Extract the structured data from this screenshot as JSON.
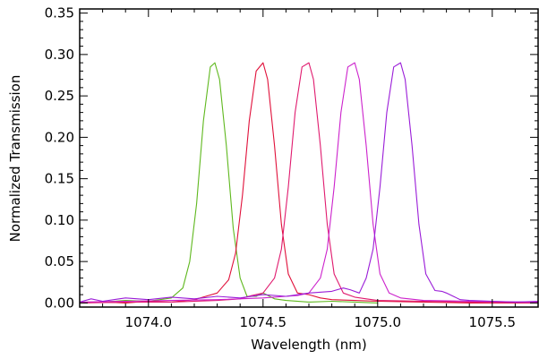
{
  "chart_data": {
    "type": "line",
    "title": "",
    "xlabel": "Wavelength (nm)",
    "ylabel": "Normalized Transmission",
    "xlim": [
      1073.7,
      1075.7
    ],
    "ylim": [
      -0.005,
      0.355
    ],
    "x_ticks": [
      1074.0,
      1074.5,
      1075.0,
      1075.5
    ],
    "x_tick_labels": [
      "1074.0",
      "1074.5",
      "1075.0",
      "1075.5"
    ],
    "y_ticks": [
      0.0,
      0.05,
      0.1,
      0.15,
      0.2,
      0.25,
      0.3,
      0.35
    ],
    "y_tick_labels": [
      "0.00",
      "0.05",
      "0.10",
      "0.15",
      "0.20",
      "0.25",
      "0.30",
      "0.35"
    ],
    "grid": false,
    "legend": "none",
    "series": [
      {
        "color": "#5fb81e",
        "x": [
          1073.7,
          1073.8,
          1073.9,
          1074.0,
          1074.05,
          1074.1,
          1074.15,
          1074.18,
          1074.21,
          1074.24,
          1074.27,
          1074.29,
          1074.31,
          1074.34,
          1074.37,
          1074.4,
          1074.43,
          1074.47,
          1074.5,
          1074.55,
          1074.6,
          1074.7,
          1074.8,
          1074.9,
          1075.0
        ],
        "y": [
          0.0,
          0.001,
          0.003,
          0.002,
          0.004,
          0.006,
          0.018,
          0.05,
          0.12,
          0.22,
          0.285,
          0.29,
          0.27,
          0.19,
          0.09,
          0.03,
          0.008,
          0.008,
          0.012,
          0.005,
          0.003,
          0.001,
          0.002,
          0.001,
          0.0
        ]
      },
      {
        "color": "#e0103a",
        "x": [
          1073.7,
          1073.8,
          1073.9,
          1074.0,
          1074.1,
          1074.2,
          1074.25,
          1074.3,
          1074.35,
          1074.38,
          1074.41,
          1074.44,
          1074.47,
          1074.5,
          1074.52,
          1074.55,
          1074.58,
          1074.61,
          1074.65,
          1074.7,
          1074.75,
          1074.8,
          1074.9,
          1075.0,
          1075.2,
          1075.4,
          1075.7
        ],
        "y": [
          0.0,
          0.001,
          0.0,
          0.002,
          0.001,
          0.004,
          0.008,
          0.012,
          0.028,
          0.06,
          0.13,
          0.22,
          0.28,
          0.29,
          0.27,
          0.19,
          0.095,
          0.035,
          0.012,
          0.01,
          0.006,
          0.004,
          0.003,
          0.002,
          0.001,
          0.0,
          0.0
        ]
      },
      {
        "color": "#e01a6e",
        "x": [
          1073.7,
          1073.9,
          1074.1,
          1074.3,
          1074.4,
          1074.45,
          1074.5,
          1074.55,
          1074.58,
          1074.61,
          1074.64,
          1074.67,
          1074.7,
          1074.72,
          1074.75,
          1074.78,
          1074.81,
          1074.85,
          1074.9,
          1074.95,
          1075.0,
          1075.2,
          1075.4,
          1075.7
        ],
        "y": [
          0.0,
          0.001,
          0.001,
          0.003,
          0.005,
          0.009,
          0.012,
          0.03,
          0.065,
          0.14,
          0.23,
          0.285,
          0.29,
          0.27,
          0.19,
          0.095,
          0.035,
          0.012,
          0.007,
          0.005,
          0.003,
          0.002,
          0.001,
          0.0
        ]
      },
      {
        "color": "#cc22cc",
        "x": [
          1073.7,
          1073.9,
          1074.1,
          1074.3,
          1074.5,
          1074.6,
          1074.65,
          1074.7,
          1074.75,
          1074.78,
          1074.81,
          1074.84,
          1074.87,
          1074.9,
          1074.92,
          1074.95,
          1074.98,
          1075.01,
          1075.05,
          1075.1,
          1075.2,
          1075.4,
          1075.7
        ],
        "y": [
          0.001,
          0.002,
          0.003,
          0.004,
          0.006,
          0.008,
          0.009,
          0.012,
          0.03,
          0.065,
          0.14,
          0.23,
          0.285,
          0.29,
          0.27,
          0.19,
          0.095,
          0.035,
          0.012,
          0.006,
          0.003,
          0.002,
          0.001
        ]
      },
      {
        "color": "#9a1cd8",
        "x": [
          1073.7,
          1073.75,
          1073.8,
          1073.9,
          1074.0,
          1074.1,
          1074.2,
          1074.3,
          1074.4,
          1074.5,
          1074.6,
          1074.7,
          1074.8,
          1074.85,
          1074.88,
          1074.92,
          1074.95,
          1074.98,
          1075.01,
          1075.04,
          1075.07,
          1075.1,
          1075.12,
          1075.15,
          1075.18,
          1075.21,
          1075.25,
          1075.28,
          1075.3,
          1075.33,
          1075.36,
          1075.4,
          1075.5,
          1075.6,
          1075.7
        ],
        "y": [
          0.001,
          0.005,
          0.002,
          0.006,
          0.004,
          0.007,
          0.005,
          0.008,
          0.006,
          0.01,
          0.008,
          0.012,
          0.014,
          0.018,
          0.016,
          0.012,
          0.03,
          0.065,
          0.14,
          0.23,
          0.285,
          0.29,
          0.27,
          0.19,
          0.095,
          0.035,
          0.015,
          0.014,
          0.012,
          0.008,
          0.004,
          0.003,
          0.002,
          0.001,
          0.002
        ]
      }
    ]
  }
}
